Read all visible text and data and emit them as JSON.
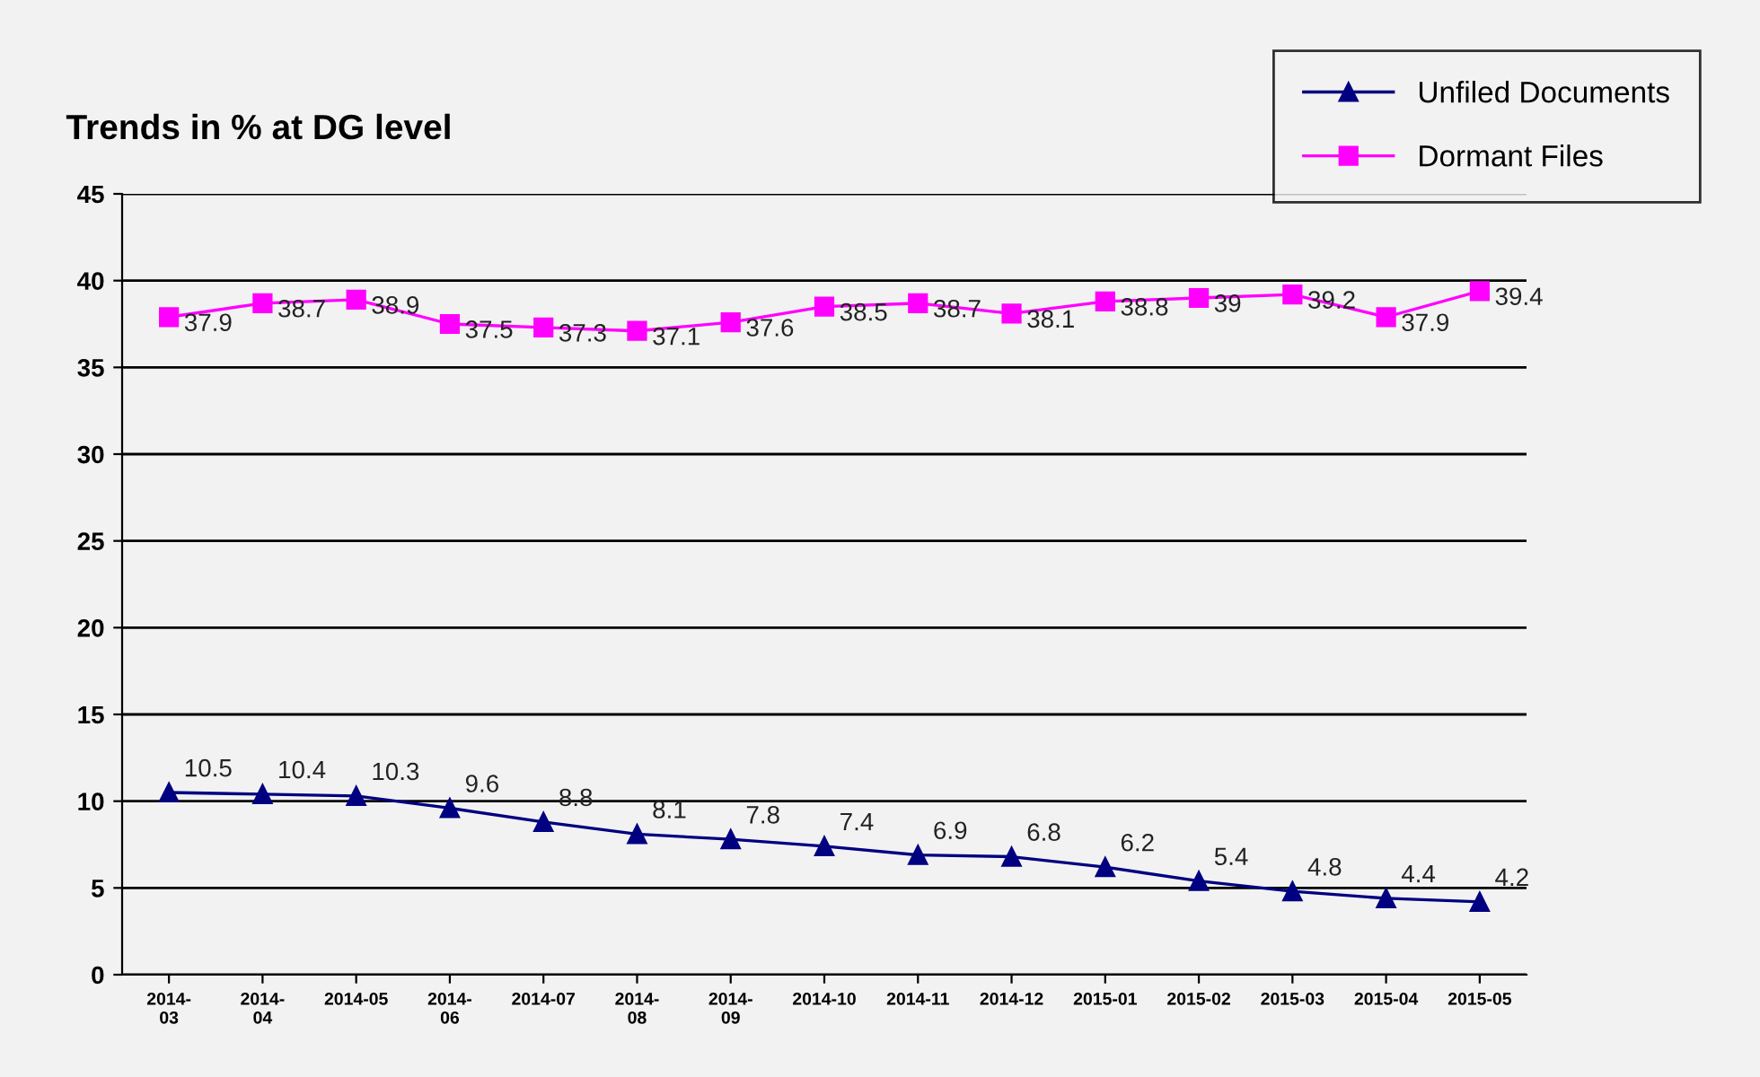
{
  "chart_data": {
    "type": "line",
    "title": "Trends in % at DG level",
    "categories": [
      "2014-\n03",
      "2014-\n04",
      "2014-05",
      "2014-\n06",
      "2014-07",
      "2014-\n08",
      "2014-\n09",
      "2014-10",
      "2014-11",
      "2014-12",
      "2015-01",
      "2015-02",
      "2015-03",
      "2015-04",
      "2015-05"
    ],
    "series": [
      {
        "name": "Unfiled Documents",
        "color": "#000080",
        "marker": "triangle",
        "values": [
          10.5,
          10.4,
          10.3,
          9.6,
          8.8,
          8.1,
          7.8,
          7.4,
          6.9,
          6.8,
          6.2,
          5.4,
          4.8,
          4.4,
          4.2
        ]
      },
      {
        "name": "Dormant Files",
        "color": "#ff00ff",
        "marker": "square",
        "values": [
          37.9,
          38.7,
          38.9,
          37.5,
          37.3,
          37.1,
          37.6,
          38.5,
          38.7,
          38.1,
          38.8,
          39,
          39.2,
          37.9,
          39.4
        ]
      }
    ],
    "ylim": [
      0,
      45
    ],
    "yticks": [
      0,
      5,
      10,
      15,
      20,
      25,
      30,
      35,
      40,
      45
    ],
    "grid": "y",
    "legend": "top right",
    "data_labels": true,
    "line_style": "solid"
  }
}
